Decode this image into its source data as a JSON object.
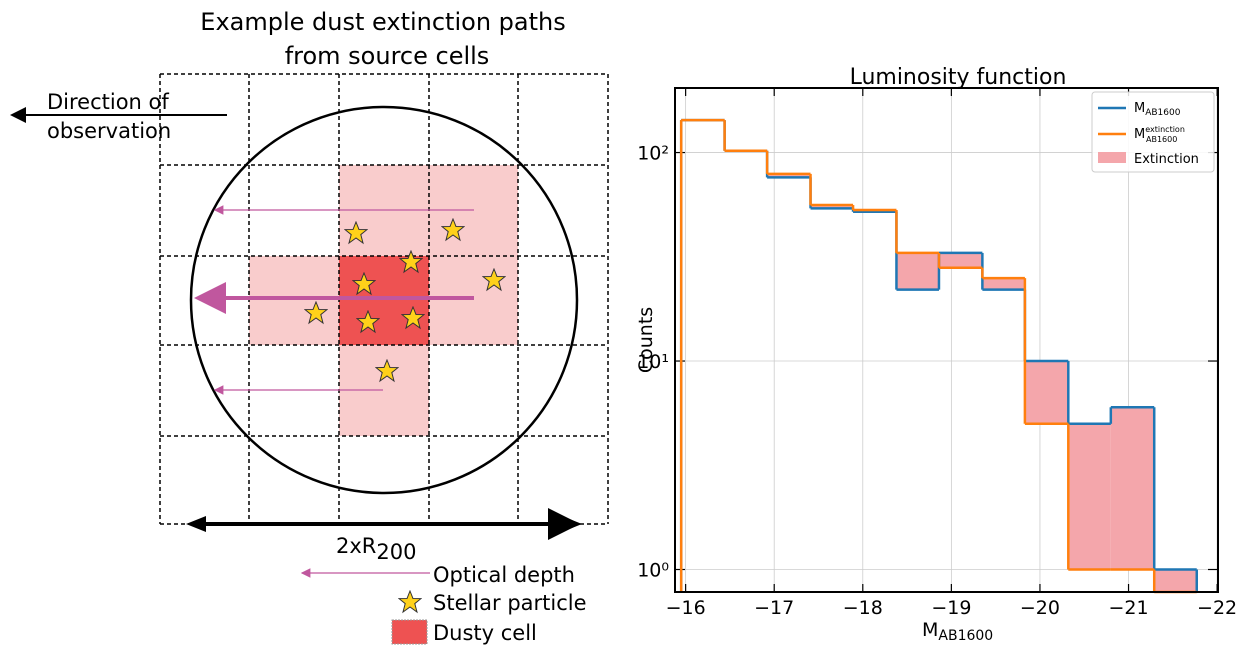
{
  "diagram": {
    "title": [
      "Example dust extinction paths",
      "from source cells"
    ],
    "direction_label": [
      "Direction of",
      "observation"
    ],
    "scale_label": {
      "text": "2xR",
      "sub": "200"
    },
    "legend": [
      "Optical depth",
      "Stellar particle",
      "Dusty cell"
    ]
  },
  "chart_data": {
    "type": "histogram",
    "title": "Luminosity function",
    "xlabel": {
      "text": "M",
      "sub": "AB1600"
    },
    "ylabel": "Counts",
    "bins": [
      -15.95,
      -16.44,
      -16.92,
      -17.41,
      -17.89,
      -18.38,
      -18.86,
      -19.35,
      -19.83,
      -20.32,
      -20.8,
      -21.29,
      -21.77
    ],
    "series": [
      {
        "name": {
          "text": "M",
          "sub": "AB1600"
        },
        "color": "#1f77b4",
        "values": [
          143,
          102,
          76,
          54,
          52,
          22,
          33,
          22,
          10,
          5,
          6,
          1
        ]
      },
      {
        "name": {
          "text": "M",
          "sup": "extinction",
          "sub": "AB1600"
        },
        "color": "#ff7f0e",
        "values": [
          143,
          102,
          79,
          56,
          53,
          33,
          28,
          25,
          5,
          1,
          1,
          0
        ]
      }
    ],
    "fill": {
      "name": "Extinction",
      "color": "#f4a6ab"
    },
    "xlim": [
      -15.88,
      -22.01
    ],
    "ylim": [
      0.78,
      204
    ],
    "xticks": [
      {
        "value": -16,
        "label": "−16"
      },
      {
        "value": -17,
        "label": "−17"
      },
      {
        "value": -18,
        "label": "−18"
      },
      {
        "value": -19,
        "label": "−19"
      },
      {
        "value": -20,
        "label": "−20"
      },
      {
        "value": -21,
        "label": "−21"
      },
      {
        "value": -22,
        "label": "−22"
      }
    ],
    "yticks": [
      {
        "value": 1,
        "label": "10⁰"
      },
      {
        "value": 10,
        "label": "10¹"
      },
      {
        "value": 100,
        "label": "10²"
      }
    ],
    "yscale": "log",
    "grid": true,
    "legend": "upper right"
  }
}
